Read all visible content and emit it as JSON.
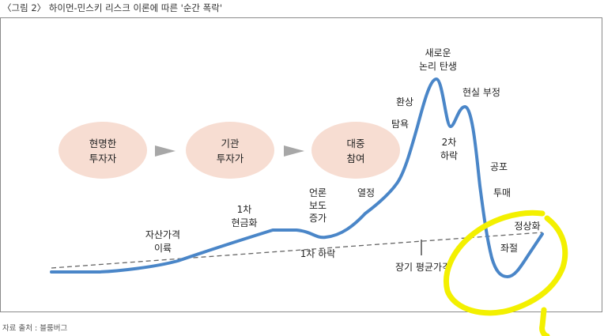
{
  "figure": {
    "caption": "〈그림 2〉 하이먼-민스키 리스크 이론에 따른 '순간 폭락'",
    "source": "자료 출처 : 블룸버그"
  },
  "stages": [
    {
      "line1": "현명한",
      "line2": "투자자"
    },
    {
      "line1": "기관",
      "line2": "투자가"
    },
    {
      "line1": "대중",
      "line2": "참여"
    }
  ],
  "labels": {
    "asset_price_1": "자산가격",
    "asset_price_2": "이륙",
    "cash_1": "1차",
    "cash_2": "현금화",
    "media_1": "언론",
    "media_2": "보도",
    "media_3": "증가",
    "enthusiasm": "열정",
    "greed": "탐욕",
    "delusion": "환상",
    "paradigm_1": "새로운",
    "paradigm_2": "논리 탄생",
    "denial": "현실 부정",
    "second_drop_1": "2차",
    "second_drop_2": "하락",
    "fear": "공포",
    "capitulation": "투매",
    "normalization": "정상화",
    "despair": "좌절",
    "first_drop": "1차 하락",
    "mean": "장기 평균가격"
  },
  "colors": {
    "curve": "#4a86c8",
    "oval": "#f7ddd2",
    "arrow": "#a7a7a7",
    "dash": "#666666",
    "highlight": "#f3f000"
  }
}
